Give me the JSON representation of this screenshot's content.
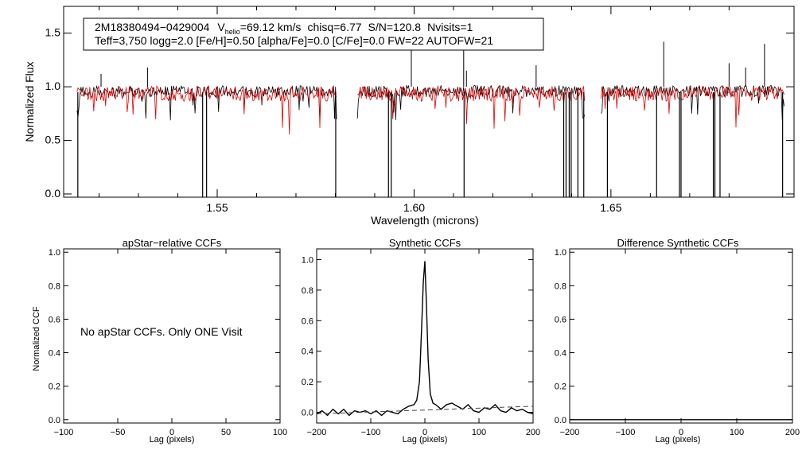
{
  "info": {
    "line1_id": "2M18380494−0429004",
    "vhelio_V": "V",
    "vhelio_sub": "helio",
    "vhelio_value": "=69.12 km/s",
    "chisq": "chisq=6.77",
    "sn": "S/N=120.8",
    "nvisits": "Nvisits=1",
    "line2": "Teff=3,750 logg=2.0 [Fe/H]=0.50 [alpha/Fe]=0.0 [C/Fe]=0.0 FW=22 AUTOFW=21"
  },
  "colors": {
    "observed": "#000000",
    "model": "#e00000",
    "axis": "#000000"
  },
  "chart_data": [
    {
      "type": "line",
      "title": "",
      "xlabel": "Wavelength (microns)",
      "ylabel": "Normalized Flux",
      "xlim": [
        1.511,
        1.6965
      ],
      "ylim": [
        -0.03,
        1.75
      ],
      "xticks": [
        1.55,
        1.6,
        1.65
      ],
      "xtick_labels": [
        "1.55",
        "1.60",
        "1.65"
      ],
      "yticks": [
        0.0,
        0.5,
        1.0,
        1.5
      ],
      "ytick_labels": [
        "0.0",
        "0.5",
        "1.0",
        "1.5"
      ],
      "segments": [
        [
          1.5144,
          1.5803
        ],
        [
          1.5856,
          1.6433
        ],
        [
          1.6475,
          1.694
        ]
      ],
      "series": [
        {
          "name": "observed spectrum",
          "color": "#000000",
          "continuum": 0.97,
          "noise": 0.055,
          "deep_lines": [
            1.5146,
            1.5463,
            1.5473,
            1.5801,
            1.5935,
            1.5942,
            1.6127,
            1.638,
            1.6386,
            1.6394,
            1.6399,
            1.6416,
            1.6431,
            1.6491,
            1.6616,
            1.6674,
            1.6678,
            1.676,
            1.6764,
            1.6777,
            1.6936
          ],
          "spikes": [
            [
              1.5205,
              1.12
            ],
            [
              1.5323,
              1.18
            ],
            [
              1.5993,
              1.4
            ],
            [
              1.6126,
              1.36
            ],
            [
              1.6133,
              1.15
            ],
            [
              1.631,
              1.2
            ],
            [
              1.6634,
              1.42
            ],
            [
              1.68,
              1.22
            ],
            [
              1.6842,
              1.18
            ],
            [
              1.689,
              1.4
            ]
          ]
        },
        {
          "name": "synthetic model",
          "color": "#e00000",
          "continuum": 0.95,
          "noise": 0.07
        }
      ]
    },
    {
      "type": "line",
      "title": "apStar−relative CCFs",
      "xlabel": "Lag (pixels)",
      "ylabel": "Normalized CCF",
      "xlim": [
        -100,
        100
      ],
      "ylim": [
        -0.02,
        1.02
      ],
      "xticks": [
        -100,
        -50,
        0,
        50,
        100
      ],
      "xtick_labels": [
        "−100",
        "−50",
        "0",
        "50",
        "100"
      ],
      "yticks": [
        0.0,
        0.2,
        0.4,
        0.6,
        0.8,
        1.0
      ],
      "ytick_labels": [
        "0.0",
        "0.2",
        "0.4",
        "0.6",
        "0.8",
        "1.0"
      ],
      "annotation": "No apStar CCFs.  Only ONE Visit",
      "series": []
    },
    {
      "type": "line",
      "title": "Synthetic CCFs",
      "xlabel": "Lag (pixels)",
      "ylabel": "",
      "xlim": [
        -200,
        200
      ],
      "ylim": [
        -0.07,
        1.07
      ],
      "xticks": [
        -200,
        -100,
        0,
        100,
        200
      ],
      "xtick_labels": [
        "−200",
        "−100",
        "0",
        "100",
        "200"
      ],
      "yticks": [
        0.0,
        0.2,
        0.4,
        0.6,
        0.8,
        1.0
      ],
      "ytick_labels": [
        "0.0",
        "0.2",
        "0.4",
        "0.6",
        "0.8",
        "1.0"
      ],
      "series": [
        {
          "name": "CCF",
          "color": "#000000",
          "style": "solid",
          "x": [
            -200,
            -190,
            -180,
            -170,
            -160,
            -150,
            -140,
            -130,
            -120,
            -110,
            -100,
            -90,
            -80,
            -70,
            -60,
            -50,
            -40,
            -30,
            -20,
            -15,
            -10,
            -6,
            -3,
            0,
            3,
            6,
            10,
            15,
            20,
            30,
            40,
            50,
            60,
            70,
            80,
            90,
            100,
            110,
            120,
            130,
            140,
            150,
            160,
            170,
            180,
            190,
            200
          ],
          "y": [
            -0.01,
            0.01,
            -0.02,
            0.02,
            -0.01,
            0.02,
            -0.02,
            0.01,
            0.0,
            0.01,
            -0.01,
            0.01,
            -0.02,
            0.01,
            0.0,
            -0.01,
            0.02,
            0.04,
            0.05,
            0.08,
            0.2,
            0.55,
            0.85,
            0.99,
            0.7,
            0.35,
            0.12,
            0.06,
            0.05,
            0.02,
            0.05,
            0.06,
            0.04,
            0.02,
            0.05,
            0.01,
            0.0,
            0.03,
            0.02,
            0.05,
            0.01,
            0.0,
            0.03,
            0.01,
            0.02,
            0.0,
            -0.01
          ]
        },
        {
          "name": "baseline",
          "color": "#444444",
          "style": "dashed",
          "x": [
            -200,
            200
          ],
          "y": [
            -0.01,
            0.04
          ]
        }
      ]
    },
    {
      "type": "line",
      "title": "Difference Synthetic CCFs",
      "xlabel": "Lag (pixels)",
      "ylabel": "",
      "xlim": [
        -200,
        200
      ],
      "ylim": [
        -0.02,
        1.02
      ],
      "xticks": [
        -200,
        -100,
        0,
        100,
        200
      ],
      "xtick_labels": [
        "−200",
        "−100",
        "0",
        "100",
        "200"
      ],
      "yticks": [
        0.0,
        0.2,
        0.4,
        0.6,
        0.8,
        1.0
      ],
      "ytick_labels": [
        "0.0",
        "0.2",
        "0.4",
        "0.6",
        "0.8",
        "1.0"
      ],
      "series": [
        {
          "name": "difference",
          "color": "#000000",
          "style": "solid",
          "x": [
            -200,
            200
          ],
          "y": [
            0.0,
            0.0
          ]
        }
      ]
    }
  ]
}
